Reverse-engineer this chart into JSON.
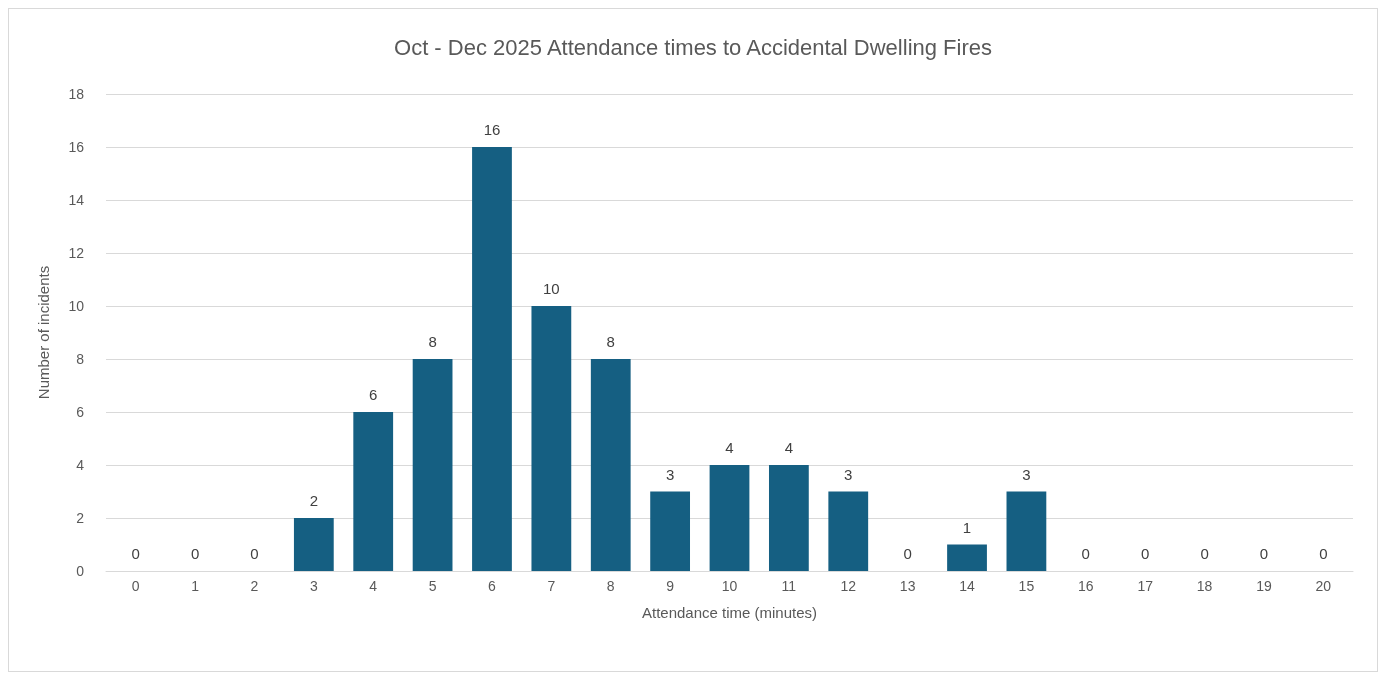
{
  "chart_data": {
    "type": "bar",
    "title": "Oct - Dec 2025 Attendance times to Accidental Dwelling Fires",
    "xlabel": "Attendance time (minutes)",
    "ylabel": "Number of incidents",
    "categories": [
      "0",
      "1",
      "2",
      "3",
      "4",
      "5",
      "6",
      "7",
      "8",
      "9",
      "10",
      "11",
      "12",
      "13",
      "14",
      "15",
      "16",
      "17",
      "18",
      "19",
      "20"
    ],
    "values": [
      0,
      0,
      0,
      2,
      6,
      8,
      16,
      10,
      8,
      3,
      4,
      4,
      3,
      0,
      1,
      3,
      0,
      0,
      0,
      0,
      0
    ],
    "color": "#155f82",
    "ylim": [
      0,
      18
    ],
    "yticks": [
      0,
      2,
      4,
      6,
      8,
      10,
      12,
      14,
      16,
      18
    ],
    "grid": "y",
    "data_labels": true
  }
}
